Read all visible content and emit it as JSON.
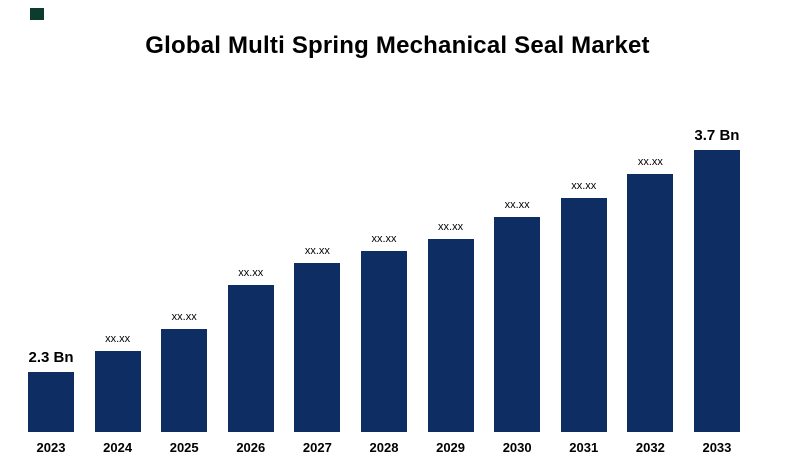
{
  "brand": {
    "mark_color": "#0d3b2e"
  },
  "chart_data": {
    "type": "bar",
    "title": "Global Multi Spring Mechanical Seal Market",
    "categories": [
      "2023",
      "2024",
      "2025",
      "2026",
      "2027",
      "2028",
      "2029",
      "2030",
      "2031",
      "2032",
      "2033"
    ],
    "bar_labels": [
      "2.3 Bn",
      "xx.xx",
      "xx.xx",
      "xx.xx",
      "xx.xx",
      "xx.xx",
      "xx.xx",
      "xx.xx",
      "xx.xx",
      "xx.xx",
      "3.7 Bn"
    ],
    "known_values_bn": {
      "2023": 2.3,
      "2033": 3.7
    },
    "estimated_values_bn": [
      2.3,
      2.43,
      2.57,
      2.85,
      2.99,
      3.06,
      3.14,
      3.28,
      3.4,
      3.55,
      3.7
    ],
    "unit": "Bn",
    "bar_color": "#0e2d63",
    "xlabel": "",
    "ylabel": "",
    "legend": "none",
    "grid": false,
    "axis_lines": false
  }
}
